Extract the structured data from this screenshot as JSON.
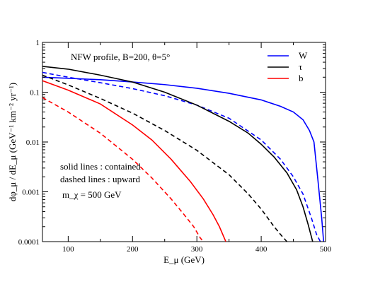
{
  "chart_data": {
    "type": "line",
    "xlabel": "E_μ (GeV)",
    "ylabel": "dφ_μ / dE_μ (GeV⁻¹ km⁻² yr⁻¹)",
    "xlim": [
      60,
      500
    ],
    "ylim": [
      0.0001,
      1
    ],
    "y_scale": "log",
    "grid": false,
    "legend_position": "top-right",
    "x_ticks": [
      100,
      200,
      300,
      400,
      500
    ],
    "x_tick_labels": [
      "100",
      "200",
      "300",
      "400",
      "500"
    ],
    "y_ticks": [
      0.0001,
      0.001,
      0.01,
      0.1,
      1
    ],
    "y_tick_labels": [
      "0.0001",
      "0.001",
      "0.01",
      "0.1",
      "1"
    ],
    "annotations": [
      "NFW profile, B=200, θ=5°",
      "solid lines : contained",
      "dashed lines : upward",
      "m_χ = 500 GeV"
    ],
    "series": [
      {
        "name": "W",
        "color": "#0000ff",
        "dash": "solid",
        "x": [
          60,
          100,
          150,
          200,
          250,
          300,
          350,
          400,
          430,
          450,
          465,
          475,
          482,
          488,
          494,
          497
        ],
        "y": [
          0.2,
          0.19,
          0.178,
          0.16,
          0.142,
          0.12,
          0.095,
          0.07,
          0.052,
          0.04,
          0.028,
          0.017,
          0.01,
          0.0018,
          0.0003,
          0.0001
        ]
      },
      {
        "name": "W",
        "color": "#0000ff",
        "dash": "dashed",
        "x": [
          60,
          100,
          150,
          200,
          250,
          300,
          350,
          400,
          430,
          450,
          465,
          478,
          486,
          492
        ],
        "y": [
          0.25,
          0.2,
          0.155,
          0.118,
          0.085,
          0.055,
          0.03,
          0.011,
          0.0045,
          0.002,
          0.0009,
          0.0003,
          0.00014,
          0.0001
        ]
      },
      {
        "name": "τ",
        "color": "#000000",
        "dash": "solid",
        "x": [
          60,
          100,
          150,
          200,
          250,
          300,
          350,
          380,
          400,
          420,
          440,
          455,
          465,
          473,
          480
        ],
        "y": [
          0.33,
          0.29,
          0.22,
          0.16,
          0.1,
          0.055,
          0.026,
          0.015,
          0.009,
          0.005,
          0.0024,
          0.0011,
          0.0005,
          0.00022,
          0.0001
        ]
      },
      {
        "name": "τ",
        "color": "#000000",
        "dash": "dashed",
        "x": [
          60,
          100,
          150,
          200,
          250,
          300,
          350,
          380,
          400,
          420,
          432,
          440
        ],
        "y": [
          0.22,
          0.14,
          0.075,
          0.038,
          0.017,
          0.0068,
          0.0022,
          0.0009,
          0.00045,
          0.0002,
          0.00013,
          0.0001
        ]
      },
      {
        "name": "b",
        "color": "#ff0000",
        "dash": "solid",
        "x": [
          60,
          100,
          150,
          200,
          230,
          260,
          290,
          310,
          325,
          335,
          345
        ],
        "y": [
          0.17,
          0.11,
          0.058,
          0.022,
          0.011,
          0.0045,
          0.0016,
          0.00072,
          0.00035,
          0.0002,
          0.0001
        ]
      },
      {
        "name": "b",
        "color": "#ff0000",
        "dash": "dashed",
        "x": [
          60,
          100,
          150,
          200,
          230,
          260,
          280,
          295,
          305,
          310
        ],
        "y": [
          0.078,
          0.04,
          0.015,
          0.0045,
          0.0019,
          0.00072,
          0.00035,
          0.0002,
          0.00012,
          0.0001
        ]
      }
    ],
    "legend": [
      {
        "label": "W",
        "color": "#0000ff"
      },
      {
        "label": "τ",
        "color": "#000000"
      },
      {
        "label": "b",
        "color": "#ff0000"
      }
    ]
  }
}
